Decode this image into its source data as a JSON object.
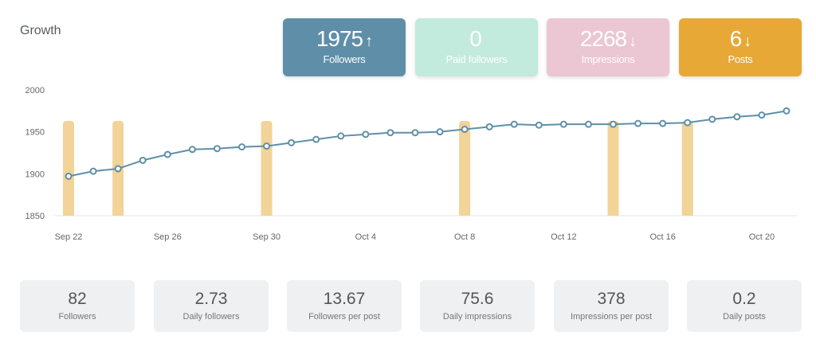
{
  "title": "Growth",
  "cards": [
    {
      "value": "1975",
      "arrow": "↑",
      "label": "Followers",
      "color": "#5f8fa8"
    },
    {
      "value": "0",
      "arrow": "",
      "label": "Paid followers",
      "color": "#c2eadd"
    },
    {
      "value": "2268",
      "arrow": "↓",
      "label": "Impressions",
      "color": "#ebc6d3"
    },
    {
      "value": "6",
      "arrow": "↓",
      "label": "Posts",
      "color": "#e8a835"
    }
  ],
  "stats": [
    {
      "value": "82",
      "label": "Followers"
    },
    {
      "value": "2.73",
      "label": "Daily followers"
    },
    {
      "value": "13.67",
      "label": "Followers per post"
    },
    {
      "value": "75.6",
      "label": "Daily impressions"
    },
    {
      "value": "378",
      "label": "Impressions per post"
    },
    {
      "value": "0.2",
      "label": "Daily posts"
    }
  ],
  "chart_data": {
    "type": "line",
    "title": "Growth",
    "x": [
      "Sep 22",
      "Sep 23",
      "Sep 24",
      "Sep 25",
      "Sep 26",
      "Sep 27",
      "Sep 28",
      "Sep 29",
      "Sep 30",
      "Oct 1",
      "Oct 2",
      "Oct 3",
      "Oct 4",
      "Oct 5",
      "Oct 6",
      "Oct 7",
      "Oct 8",
      "Oct 9",
      "Oct 10",
      "Oct 11",
      "Oct 12",
      "Oct 13",
      "Oct 14",
      "Oct 15",
      "Oct 16",
      "Oct 17",
      "Oct 18",
      "Oct 19",
      "Oct 20",
      "Oct 21"
    ],
    "xticks": [
      "Sep 22",
      "Sep 26",
      "Sep 30",
      "Oct 4",
      "Oct 8",
      "Oct 12",
      "Oct 16",
      "Oct 20"
    ],
    "yticks": [
      1850,
      1900,
      1950,
      2000
    ],
    "ylim": [
      1850,
      2000
    ],
    "series": [
      {
        "name": "Followers",
        "type": "line",
        "color": "#5f8fa8",
        "values": [
          1897,
          1903,
          1906,
          1916,
          1923,
          1929,
          1930,
          1932,
          1933,
          1937,
          1941,
          1945,
          1947,
          1949,
          1949,
          1950,
          1953,
          1956,
          1959,
          1958,
          1959,
          1959,
          1959,
          1960,
          1960,
          1961,
          1965,
          1968,
          1970,
          1975
        ]
      },
      {
        "name": "Posts",
        "type": "bar",
        "color": "#f2d398",
        "values": [
          1,
          0,
          1,
          0,
          0,
          0,
          0,
          0,
          1,
          0,
          0,
          0,
          0,
          0,
          0,
          0,
          1,
          0,
          0,
          0,
          0,
          0,
          1,
          0,
          0,
          1,
          0,
          0,
          0,
          0
        ]
      }
    ]
  }
}
